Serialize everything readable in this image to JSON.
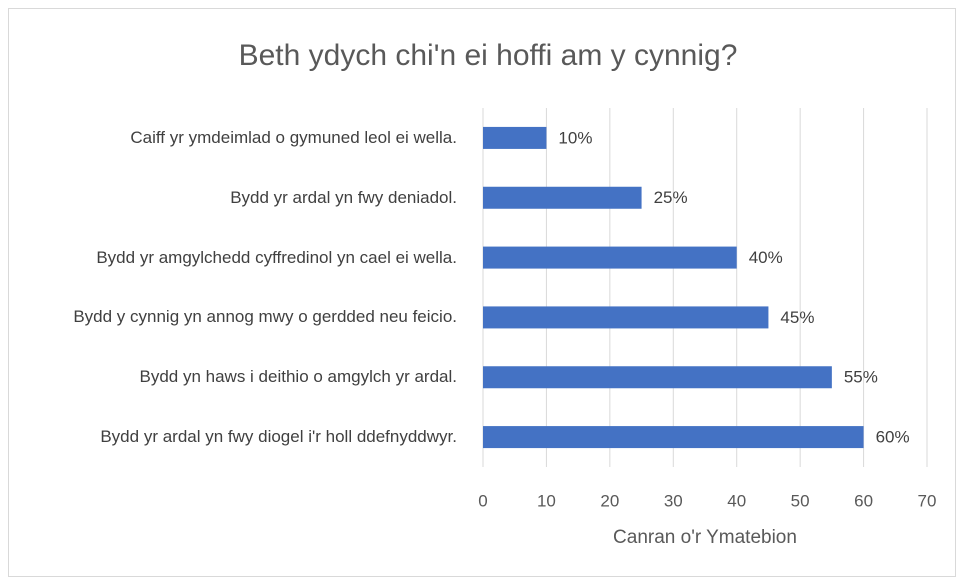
{
  "chart_data": {
    "type": "bar",
    "orientation": "horizontal",
    "title": "Beth ydych chi'n ei hoffi am y cynnig?",
    "categories": [
      "Caiff yr ymdeimlad o gymuned leol ei wella.",
      "Bydd yr ardal yn fwy deniadol.",
      "Bydd yr amgylchedd cyffredinol yn cael ei wella.",
      "Bydd y cynnig yn annog mwy o gerdded neu feicio.",
      "Bydd yn haws i deithio o amgylch yr ardal.",
      "Bydd yr ardal yn fwy diogel i'r holl ddefnyddwyr."
    ],
    "values": [
      10,
      25,
      40,
      45,
      55,
      60
    ],
    "value_labels": [
      "10%",
      "25%",
      "40%",
      "45%",
      "55%",
      "60%"
    ],
    "color": "#4472c4",
    "xlabel": "Canran o'r Ymatebion",
    "xlim": [
      0,
      70
    ],
    "xticks": [
      0,
      10,
      20,
      30,
      40,
      50,
      60,
      70
    ],
    "grid": true
  }
}
